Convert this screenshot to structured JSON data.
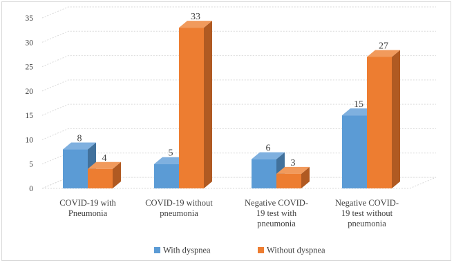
{
  "chart_data": {
    "type": "bar",
    "categories": [
      [
        "COVID-19 with",
        "Pneumonia"
      ],
      [
        "COVID-19 without",
        "pneumonia"
      ],
      [
        "Negative COVID-",
        "19 test with",
        "pneumonia"
      ],
      [
        "Negative COVID-",
        "19 test without",
        "pneumonia"
      ]
    ],
    "series": [
      {
        "name": "With dyspnea",
        "values": [
          8,
          5,
          6,
          15
        ],
        "color": "#5b9bd5",
        "side": "#41719c",
        "top": "#7fb0df"
      },
      {
        "name": "Without dyspnea",
        "values": [
          4,
          33,
          3,
          27
        ],
        "color": "#ed7d31",
        "side": "#b05a22",
        "top": "#f19a5c"
      }
    ],
    "yticks": [
      0,
      5,
      10,
      15,
      20,
      25,
      30,
      35
    ],
    "ylim": [
      0,
      35
    ],
    "gridlines": true,
    "legend_position": "bottom",
    "style": "3d-clustered-column"
  }
}
